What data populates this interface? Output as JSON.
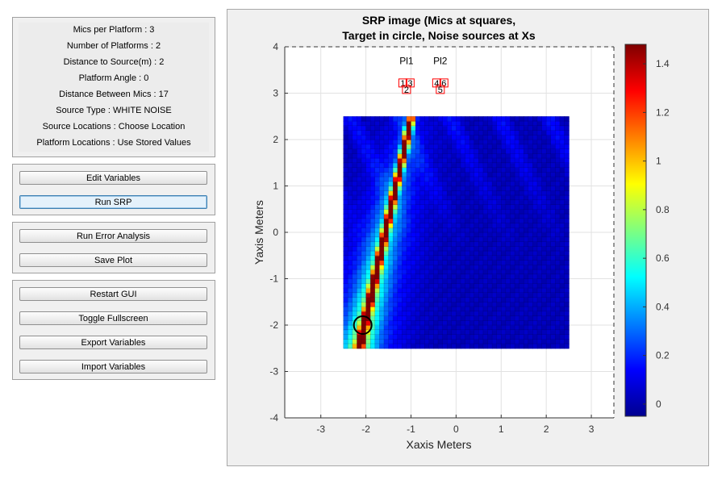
{
  "info": {
    "lines": [
      "Mics per Platform : 3",
      "Number of Platforms : 2",
      "Distance to Source(m) : 2",
      "Platform Angle : 0",
      "Distance Between Mics : 17",
      "Source Type : WHITE NOISE",
      "Source Locations : Choose Location",
      "Platform Locations : Use Stored Values"
    ]
  },
  "buttons": {
    "edit_variables": "Edit Variables",
    "run_srp": "Run SRP",
    "run_error_analysis": "Run Error Analysis",
    "save_plot": "Save Plot",
    "restart_gui": "Restart GUI",
    "toggle_fullscreen": "Toggle Fullscreen",
    "export_variables": "Export Variables",
    "import_variables": "Import Variables"
  },
  "plot": {
    "title_line1": "SRP image (Mics at squares,",
    "title_line2": "Target in circle, Noise sources at Xs",
    "xlabel": "Xaxis Meters",
    "ylabel": "Yaxis Meters",
    "xlim": [
      -3.8,
      3.5
    ],
    "ylim": [
      -4,
      4
    ],
    "xticks": [
      -3,
      -2,
      -1,
      0,
      1,
      2,
      3
    ],
    "yticks": [
      -4,
      -3,
      -2,
      -1,
      0,
      1,
      2,
      3,
      4
    ],
    "image_extent": {
      "x": [
        -2.5,
        2.5
      ],
      "y": [
        -2.5,
        2.5
      ]
    },
    "colorbar": {
      "ticks": [
        0,
        0.2,
        0.4,
        0.6,
        0.8,
        1,
        1.2,
        1.4
      ],
      "tick_labels": [
        "0",
        "0.2",
        "0.4",
        "0.6",
        "0.8",
        "1",
        "1.2",
        "1.4"
      ],
      "range": [
        -0.05,
        1.48
      ],
      "colormap": "jet"
    },
    "platforms": [
      {
        "name": "Pl1",
        "label_x": -1.1,
        "label_y": 3.7,
        "mics": [
          {
            "id": "1",
            "x": -1.18,
            "y": 3.22
          },
          {
            "id": "3",
            "x": -1.02,
            "y": 3.22
          },
          {
            "id": "2",
            "x": -1.1,
            "y": 3.08
          }
        ]
      },
      {
        "name": "Pl2",
        "label_x": -0.35,
        "label_y": 3.7,
        "mics": [
          {
            "id": "4",
            "x": -0.43,
            "y": 3.22
          },
          {
            "id": "6",
            "x": -0.27,
            "y": 3.22
          },
          {
            "id": "5",
            "x": -0.35,
            "y": 3.08
          }
        ]
      }
    ],
    "target": {
      "x": -2.07,
      "y": -2.0
    },
    "marker_color": "#ff0000"
  }
}
